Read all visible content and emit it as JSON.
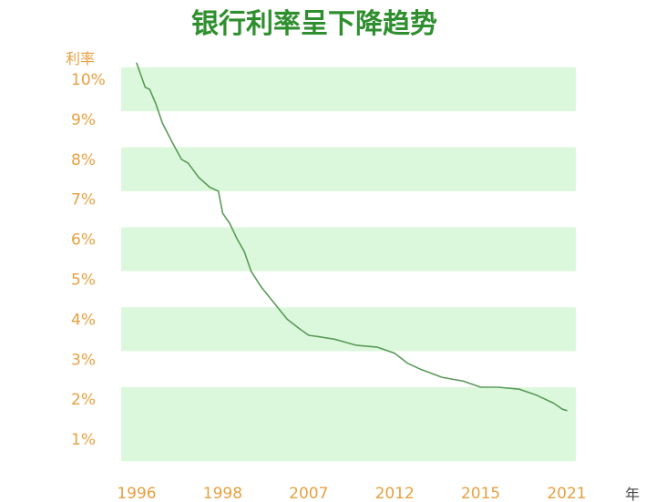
{
  "chart_data": {
    "type": "line",
    "title": "银行利率呈下降趋势",
    "ylabel": "利率",
    "xlabel": "年",
    "ylim": [
      0.5,
      10.5
    ],
    "y_ticks": [
      "10%",
      "9%",
      "8%",
      "7%",
      "6%",
      "5%",
      "4%",
      "3%",
      "2%",
      "1%"
    ],
    "y_tick_values": [
      10,
      9,
      8,
      7,
      6,
      5,
      4,
      3,
      2,
      1
    ],
    "x_ticks": [
      "1996",
      "1998",
      "2007",
      "2012",
      "2015",
      "2021"
    ],
    "x_tick_indices": [
      0,
      1,
      2,
      3,
      4,
      5
    ],
    "x_range": [
      -0.03,
      5.05
    ],
    "grid": "alternating horizontal bands",
    "series": [
      {
        "x": [
          0,
          0.05,
          0.1,
          0.15,
          0.22,
          0.3,
          0.42,
          0.52,
          0.6,
          0.72,
          0.85,
          0.95,
          1.0,
          1.08,
          1.17,
          1.25,
          1.33,
          1.45,
          1.6,
          1.75,
          1.9,
          2.0,
          2.1,
          2.3,
          2.55,
          2.8,
          3.0,
          3.15,
          3.3,
          3.55,
          3.8,
          4.0,
          4.2,
          4.45,
          4.65,
          4.85,
          4.95,
          5.0
        ],
        "values": [
          10.4,
          10.1,
          9.8,
          9.75,
          9.4,
          8.9,
          8.4,
          8.0,
          7.9,
          7.55,
          7.3,
          7.2,
          6.65,
          6.4,
          6.0,
          5.7,
          5.2,
          4.8,
          4.4,
          4.0,
          3.75,
          3.6,
          3.57,
          3.5,
          3.35,
          3.3,
          3.15,
          2.9,
          2.75,
          2.55,
          2.45,
          2.3,
          2.3,
          2.25,
          2.1,
          1.9,
          1.75,
          1.72
        ]
      }
    ],
    "colors": {
      "title": "#2f8f2f",
      "line": "#5a9a5a",
      "tick": "#e8a040",
      "axis_label": "#444444",
      "band": "#dcf8dc"
    }
  }
}
